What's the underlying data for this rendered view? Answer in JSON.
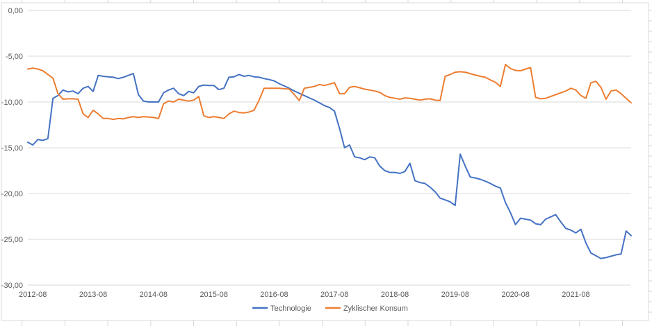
{
  "app": {
    "context": "spreadsheet-embedded-chart"
  },
  "chart_data": {
    "type": "line",
    "title": "",
    "xlabel": "",
    "ylabel": "",
    "grid": "horizontal",
    "y_axis": {
      "tick_labels": [
        "0,00",
        "-5,00",
        "-10,00",
        "-15,00",
        "-20,00",
        "-25,00",
        "-30,00"
      ],
      "tick_values": [
        0,
        -5,
        -10,
        -15,
        -20,
        -25,
        -30
      ],
      "min": -30,
      "max": 0,
      "number_format": "decimal-comma"
    },
    "x_axis": {
      "start_month": "2012-07",
      "points_count": 121,
      "tick_labels": [
        "2012-08",
        "2013-08",
        "2014-08",
        "2015-08",
        "2016-08",
        "2017-08",
        "2018-08",
        "2019-08",
        "2020-08",
        "2021-08"
      ],
      "tick_label_indices": [
        1,
        13,
        25,
        37,
        49,
        61,
        73,
        85,
        97,
        109
      ]
    },
    "legend": {
      "position": "bottom-center",
      "items": [
        {
          "label": "Technologie",
          "color": "#4472C4"
        },
        {
          "label": "Zyklischer Konsum",
          "color": "#ED7D31"
        }
      ]
    },
    "series": [
      {
        "name": "Technologie",
        "color": "#4472C4",
        "values": [
          -14.4,
          -14.7,
          -14.1,
          -14.2,
          -14.0,
          -9.6,
          -9.3,
          -8.7,
          -8.9,
          -8.8,
          -9.1,
          -8.5,
          -8.3,
          -8.85,
          -7.1,
          -7.2,
          -7.25,
          -7.3,
          -7.45,
          -7.3,
          -7.1,
          -6.9,
          -9.2,
          -9.9,
          -10.0,
          -10.0,
          -10.0,
          -9.0,
          -8.7,
          -8.5,
          -9.1,
          -9.3,
          -8.85,
          -9.0,
          -8.3,
          -8.15,
          -8.2,
          -8.2,
          -8.65,
          -8.5,
          -7.3,
          -7.25,
          -7.0,
          -7.2,
          -7.1,
          -7.25,
          -7.3,
          -7.45,
          -7.55,
          -7.7,
          -8.0,
          -8.25,
          -8.5,
          -8.8,
          -9.05,
          -9.3,
          -9.55,
          -9.8,
          -10.1,
          -10.4,
          -10.6,
          -11.0,
          -12.9,
          -15.0,
          -14.7,
          -16.0,
          -16.1,
          -16.3,
          -16.0,
          -16.1,
          -17.0,
          -17.5,
          -17.7,
          -17.7,
          -17.8,
          -17.6,
          -16.7,
          -18.6,
          -18.8,
          -18.9,
          -19.3,
          -19.8,
          -20.5,
          -20.7,
          -20.9,
          -21.3,
          -15.7,
          -17.0,
          -18.2,
          -18.3,
          -18.45,
          -18.65,
          -18.9,
          -19.2,
          -19.4,
          -21.0,
          -22.1,
          -23.4,
          -22.7,
          -22.8,
          -22.9,
          -23.3,
          -23.4,
          -22.8,
          -22.55,
          -22.3,
          -23.1,
          -23.8,
          -24.0,
          -24.3,
          -23.9,
          -25.4,
          -26.5,
          -26.8,
          -27.1,
          -27.0,
          -26.85,
          -26.7,
          -26.6,
          -24.1,
          -24.6
        ]
      },
      {
        "name": "Zyklischer Konsum",
        "color": "#ED7D31",
        "values": [
          -6.4,
          -6.3,
          -6.4,
          -6.6,
          -7.0,
          -7.4,
          -9.1,
          -9.7,
          -9.65,
          -9.65,
          -9.7,
          -11.3,
          -11.7,
          -10.9,
          -11.3,
          -11.8,
          -11.8,
          -11.9,
          -11.8,
          -11.85,
          -11.7,
          -11.6,
          -11.7,
          -11.6,
          -11.65,
          -11.7,
          -11.8,
          -10.2,
          -9.9,
          -10.0,
          -9.7,
          -9.8,
          -9.9,
          -9.8,
          -9.4,
          -11.5,
          -11.7,
          -11.6,
          -11.7,
          -11.8,
          -11.3,
          -11.0,
          -11.15,
          -11.2,
          -11.1,
          -10.9,
          -9.8,
          -8.5,
          -8.5,
          -8.5,
          -8.5,
          -8.55,
          -8.6,
          -9.2,
          -9.85,
          -8.5,
          -8.4,
          -8.3,
          -8.1,
          -8.2,
          -8.05,
          -7.9,
          -9.1,
          -9.1,
          -8.4,
          -8.3,
          -8.45,
          -8.6,
          -8.7,
          -8.8,
          -8.95,
          -9.3,
          -9.5,
          -9.6,
          -9.7,
          -9.55,
          -9.6,
          -9.7,
          -9.8,
          -9.7,
          -9.65,
          -9.8,
          -9.85,
          -7.2,
          -7.0,
          -6.75,
          -6.7,
          -6.75,
          -6.9,
          -7.05,
          -7.2,
          -7.3,
          -7.6,
          -7.85,
          -8.3,
          -5.9,
          -6.35,
          -6.55,
          -6.6,
          -6.4,
          -6.25,
          -9.5,
          -9.65,
          -9.6,
          -9.4,
          -9.2,
          -9.0,
          -8.8,
          -8.5,
          -8.7,
          -9.3,
          -9.6,
          -7.9,
          -7.75,
          -8.4,
          -9.7,
          -8.8,
          -8.7,
          -9.1,
          -9.6,
          -10.1
        ]
      }
    ],
    "colors": {
      "series_blue": "#4472C4",
      "series_orange": "#ED7D31",
      "gridline": "#D9D9D9",
      "axis_text": "#595959",
      "chart_border": "#D9D9D9",
      "sheet_grid": "#D6D6D6"
    }
  }
}
